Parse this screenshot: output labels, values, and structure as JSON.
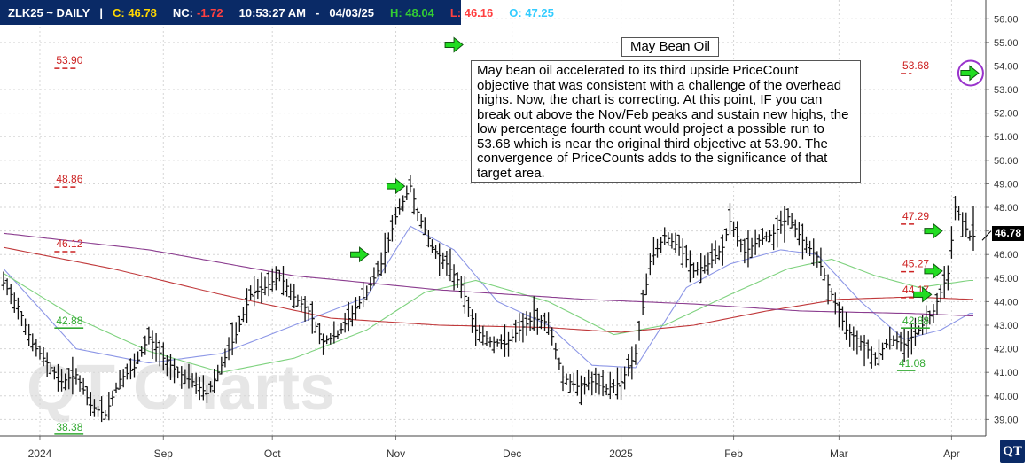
{
  "header": {
    "symbol": "ZLK25 ~ DAILY",
    "separator": "|",
    "close": "C: 46.78",
    "net_change_label": "NC:",
    "net_change": "-1.72",
    "time": "10:53:27 AM",
    "dash": "-",
    "date": "04/03/25",
    "high": "H: 48.04",
    "low": "L: 46.16",
    "open": "O: 47.25"
  },
  "colors": {
    "header_bg": "#0a2a66",
    "close": "#ffd700",
    "net_change": "#ff4040",
    "high": "#33cc33",
    "low": "#ff4040",
    "open": "#33ccff",
    "objective": "#cc2222",
    "support": "#33aa33",
    "arrow": "#22dd22"
  },
  "chart_title": "May Bean Oil",
  "annotation": "May bean oil accelerated to its third upside PriceCount objective that was consistent with a challenge of the overhead highs.  Now, the chart is correcting.  At this point, IF you can break out above the Nov/Feb peaks and sustain new highs, the low percentage fourth count would project a possible run to 53.68 which is near the original third objective at 53.90.  The convergence of PriceCounts adds to the significance of that target area.",
  "watermark": "QT Charts",
  "logo": "QT",
  "last_price": "46.78",
  "chart_data": {
    "type": "ohlc",
    "ylim": [
      38.3,
      56.8
    ],
    "y_ticks": [
      "39.00",
      "40.00",
      "41.00",
      "42.00",
      "43.00",
      "44.00",
      "45.00",
      "46.00",
      "47.00",
      "48.00",
      "49.00",
      "50.00",
      "51.00",
      "52.00",
      "53.00",
      "54.00",
      "55.00",
      "56.00"
    ],
    "x_labels": [
      "2024",
      "Sep",
      "Oct",
      "Nov",
      "Dec",
      "2025",
      "Feb",
      "Mar",
      "Apr"
    ],
    "x_label_index": [
      10,
      44,
      74,
      108,
      140,
      170,
      201,
      230,
      261
    ],
    "n_bars": 268,
    "closes_key": [
      [
        0,
        44.8
      ],
      [
        4,
        43.8
      ],
      [
        8,
        42.2
      ],
      [
        12,
        41.4
      ],
      [
        16,
        40.6
      ],
      [
        20,
        40.9
      ],
      [
        24,
        39.6
      ],
      [
        28,
        39.2
      ],
      [
        32,
        40.7
      ],
      [
        36,
        41.2
      ],
      [
        40,
        42.5
      ],
      [
        44,
        41.6
      ],
      [
        48,
        41.0
      ],
      [
        52,
        40.6
      ],
      [
        56,
        40.1
      ],
      [
        60,
        41.3
      ],
      [
        64,
        42.6
      ],
      [
        68,
        44.3
      ],
      [
        72,
        44.6
      ],
      [
        76,
        45.1
      ],
      [
        80,
        44.2
      ],
      [
        84,
        43.6
      ],
      [
        88,
        42.3
      ],
      [
        92,
        42.6
      ],
      [
        96,
        43.5
      ],
      [
        100,
        44.4
      ],
      [
        104,
        45.6
      ],
      [
        108,
        47.6
      ],
      [
        112,
        48.9
      ],
      [
        114,
        47.8
      ],
      [
        118,
        46.3
      ],
      [
        122,
        45.6
      ],
      [
        126,
        44.7
      ],
      [
        130,
        42.8
      ],
      [
        134,
        42.3
      ],
      [
        138,
        42.2
      ],
      [
        142,
        42.8
      ],
      [
        146,
        43.3
      ],
      [
        150,
        43.1
      ],
      [
        154,
        40.8
      ],
      [
        158,
        40.4
      ],
      [
        162,
        40.6
      ],
      [
        166,
        40.3
      ],
      [
        170,
        40.6
      ],
      [
        174,
        41.8
      ],
      [
        178,
        45.7
      ],
      [
        182,
        46.8
      ],
      [
        186,
        46.3
      ],
      [
        190,
        45.3
      ],
      [
        194,
        45.6
      ],
      [
        198,
        46.3
      ],
      [
        200,
        47.4
      ],
      [
        204,
        46.1
      ],
      [
        208,
        46.6
      ],
      [
        212,
        46.9
      ],
      [
        216,
        47.6
      ],
      [
        220,
        46.6
      ],
      [
        224,
        45.9
      ],
      [
        228,
        44.3
      ],
      [
        232,
        42.8
      ],
      [
        236,
        42.3
      ],
      [
        240,
        41.6
      ],
      [
        244,
        42.4
      ],
      [
        248,
        42.2
      ],
      [
        252,
        42.8
      ],
      [
        256,
        43.6
      ],
      [
        260,
        45.2
      ],
      [
        262,
        48.0
      ],
      [
        264,
        47.4
      ],
      [
        266,
        46.78
      ]
    ],
    "moving_averages": [
      {
        "color": "#8c96e6",
        "values_key": [
          [
            0,
            45.4
          ],
          [
            20,
            42.0
          ],
          [
            40,
            41.4
          ],
          [
            60,
            41.8
          ],
          [
            80,
            43.0
          ],
          [
            100,
            44.2
          ],
          [
            112,
            47.2
          ],
          [
            124,
            46.2
          ],
          [
            136,
            44.0
          ],
          [
            150,
            43.0
          ],
          [
            162,
            41.3
          ],
          [
            174,
            41.2
          ],
          [
            188,
            44.6
          ],
          [
            200,
            45.6
          ],
          [
            214,
            46.2
          ],
          [
            224,
            46.0
          ],
          [
            236,
            44.0
          ],
          [
            248,
            42.4
          ],
          [
            258,
            42.8
          ],
          [
            266,
            43.5
          ]
        ]
      },
      {
        "color": "#7fd27f",
        "values_key": [
          [
            0,
            45.2
          ],
          [
            20,
            43.3
          ],
          [
            40,
            41.9
          ],
          [
            60,
            41.0
          ],
          [
            80,
            41.6
          ],
          [
            100,
            42.8
          ],
          [
            116,
            44.4
          ],
          [
            130,
            44.9
          ],
          [
            150,
            44.0
          ],
          [
            168,
            42.6
          ],
          [
            182,
            43.0
          ],
          [
            200,
            44.3
          ],
          [
            216,
            45.4
          ],
          [
            228,
            45.8
          ],
          [
            240,
            45.1
          ],
          [
            252,
            44.6
          ],
          [
            266,
            44.9
          ]
        ]
      },
      {
        "color": "#c0393b",
        "values_key": [
          [
            0,
            46.3
          ],
          [
            30,
            45.4
          ],
          [
            60,
            44.3
          ],
          [
            90,
            43.3
          ],
          [
            120,
            43.0
          ],
          [
            150,
            42.9
          ],
          [
            170,
            42.7
          ],
          [
            190,
            43.0
          ],
          [
            210,
            43.6
          ],
          [
            230,
            44.1
          ],
          [
            250,
            44.2
          ],
          [
            266,
            44.1
          ]
        ]
      },
      {
        "color": "#8b3d8f",
        "values_key": [
          [
            0,
            46.9
          ],
          [
            40,
            46.2
          ],
          [
            80,
            45.1
          ],
          [
            120,
            44.5
          ],
          [
            160,
            44.1
          ],
          [
            190,
            43.9
          ],
          [
            220,
            43.6
          ],
          [
            250,
            43.5
          ],
          [
            266,
            43.4
          ]
        ]
      }
    ],
    "objectives": [
      {
        "label": "53.90",
        "value": 53.9,
        "from": 14,
        "to": 20,
        "color": "#cc2222"
      },
      {
        "label": "48.86",
        "value": 48.86,
        "from": 14,
        "to": 20,
        "color": "#cc2222"
      },
      {
        "label": "46.12",
        "value": 46.12,
        "from": 14,
        "to": 20,
        "color": "#cc2222"
      },
      {
        "label": "53.68",
        "value": 53.68,
        "from": 247,
        "to": 250,
        "color": "#cc2222"
      },
      {
        "label": "47.29",
        "value": 47.29,
        "from": 247,
        "to": 251,
        "color": "#cc2222"
      },
      {
        "label": "45.27",
        "value": 45.27,
        "from": 247,
        "to": 251,
        "color": "#cc2222"
      },
      {
        "label": "44.17",
        "value": 44.17,
        "from": 247,
        "to": 251,
        "color": "#cc2222"
      }
    ],
    "supports": [
      {
        "label": "42.88",
        "value": 42.88,
        "from": 14,
        "to": 22
      },
      {
        "label": "38.38",
        "value": 38.38,
        "from": 14,
        "to": 22
      },
      {
        "label": "42.88",
        "value": 42.88,
        "from": 247,
        "to": 255
      },
      {
        "label": "41.08",
        "value": 41.08,
        "from": 246,
        "to": 251
      }
    ],
    "arrows": [
      {
        "x": 124,
        "y": 54.9
      },
      {
        "x": 108,
        "y": 48.9
      },
      {
        "x": 98,
        "y": 46.0
      },
      {
        "x": 256,
        "y": 47.0
      },
      {
        "x": 256,
        "y": 45.3
      },
      {
        "x": 253,
        "y": 44.3
      },
      {
        "x": 266,
        "y": 53.7,
        "circled": true
      }
    ]
  }
}
